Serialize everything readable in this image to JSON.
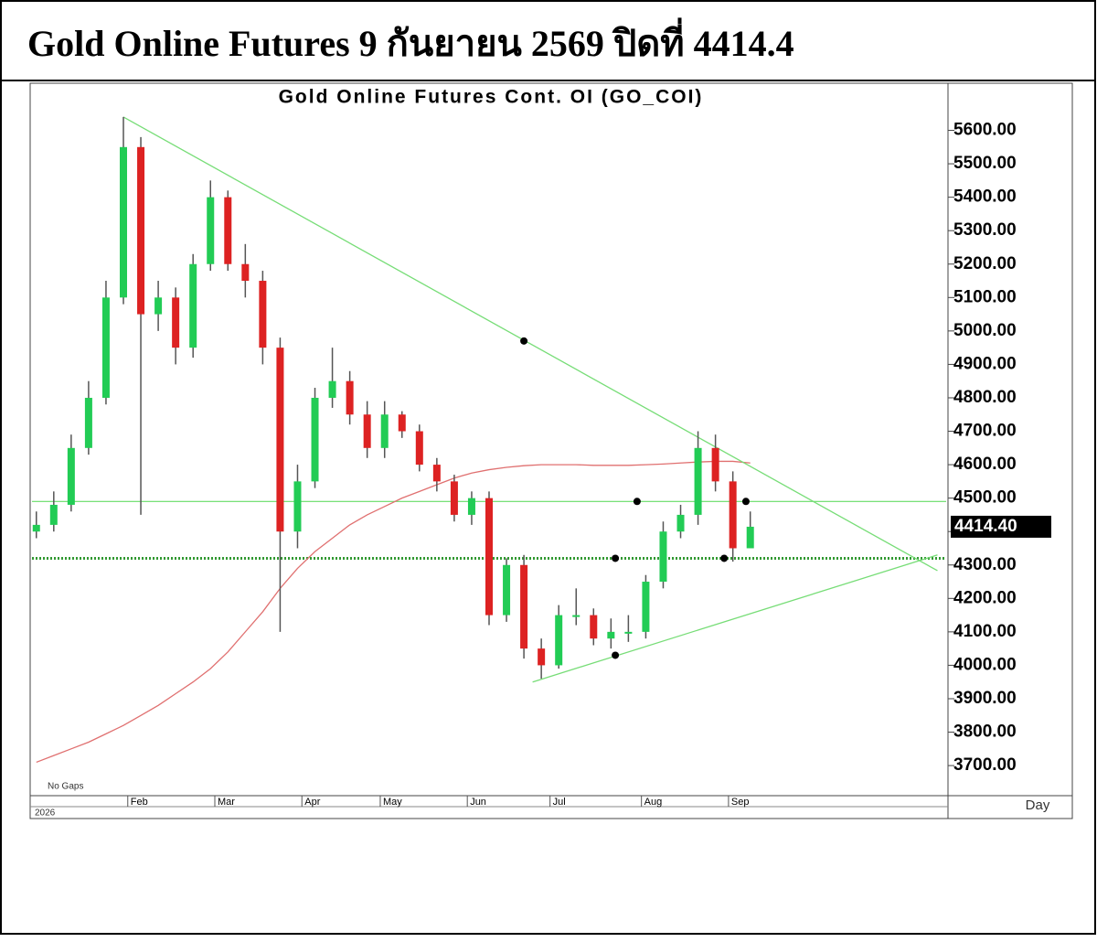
{
  "header": {
    "title": "Gold Online Futures 9 กันยายน 2569 ปิดที่ 4414.4"
  },
  "chart_data": {
    "type": "candlestick",
    "title": "Gold Online Futures Cont. OI (GO_COI)",
    "year_label": "2026",
    "note": "No Gaps",
    "period": "Day",
    "x": [
      0,
      4,
      8,
      12,
      16,
      20,
      24,
      28,
      32,
      36,
      40,
      44,
      48,
      52,
      56,
      60,
      64,
      68,
      72,
      76,
      80,
      84,
      88,
      92,
      96,
      100,
      104,
      108,
      112,
      116,
      120,
      124,
      128,
      132,
      136,
      140,
      144,
      148,
      152,
      156,
      160,
      164
    ],
    "open": [
      4400,
      4420,
      4480,
      4650,
      4800,
      5100,
      5550,
      5050,
      5100,
      4950,
      5200,
      5400,
      5200,
      5150,
      4950,
      4400,
      4550,
      4800,
      4850,
      4750,
      4650,
      4750,
      4700,
      4600,
      4550,
      4450,
      4500,
      4150,
      4300,
      4050,
      4000,
      4150,
      4150,
      4080,
      4100,
      4100,
      4250,
      4400,
      4450,
      4650,
      4550,
      4350
    ],
    "high": [
      4460,
      4520,
      4690,
      4850,
      5150,
      5640,
      5580,
      5150,
      5130,
      5230,
      5450,
      5420,
      5260,
      5180,
      4980,
      4600,
      4830,
      4950,
      4880,
      4790,
      4790,
      4760,
      4720,
      4620,
      4570,
      4520,
      4520,
      4320,
      4330,
      4080,
      4180,
      4230,
      4170,
      4140,
      4150,
      4270,
      4430,
      4480,
      4700,
      4690,
      4580,
      4460
    ],
    "low": [
      4380,
      4400,
      4460,
      4630,
      4780,
      5080,
      4450,
      5000,
      4900,
      4920,
      5180,
      5180,
      5100,
      4900,
      4100,
      4350,
      4530,
      4770,
      4720,
      4620,
      4620,
      4680,
      4580,
      4520,
      4430,
      4420,
      4120,
      4130,
      4020,
      3960,
      3990,
      4120,
      4060,
      4050,
      4070,
      4080,
      4230,
      4380,
      4420,
      4520,
      4310,
      4370
    ],
    "close": [
      4420,
      4480,
      4650,
      4800,
      5100,
      5550,
      5050,
      5100,
      4950,
      5200,
      5400,
      5200,
      5150,
      4950,
      4400,
      4550,
      4800,
      4850,
      4750,
      4650,
      4750,
      4700,
      4600,
      4550,
      4450,
      4500,
      4150,
      4300,
      4050,
      4000,
      4150,
      4150,
      4080,
      4100,
      4100,
      4250,
      4400,
      4450,
      4650,
      4550,
      4350,
      4414.4
    ],
    "up_color": "#22cc55",
    "down_color": "#dd2222",
    "series": [
      {
        "color": "#e07070",
        "values": [
          3710,
          3730,
          3750,
          3770,
          3795,
          3820,
          3850,
          3880,
          3915,
          3950,
          3990,
          4040,
          4100,
          4160,
          4230,
          4290,
          4340,
          4380,
          4420,
          4450,
          4475,
          4500,
          4520,
          4540,
          4560,
          4575,
          4585,
          4592,
          4597,
          4600,
          4600,
          4600,
          4598,
          4598,
          4598,
          4600,
          4602,
          4605,
          4608,
          4610,
          4610,
          4605
        ]
      }
    ],
    "trendlines": [
      {
        "x": [
          20,
          207
        ],
        "y": [
          5640,
          4283
        ],
        "color": "#77dd77"
      },
      {
        "x": [
          114,
          207
        ],
        "y": [
          3950,
          4330
        ],
        "color": "#77dd77"
      }
    ],
    "hlines": [
      {
        "value": 4490,
        "color": "#66dd66",
        "style": "solid"
      },
      {
        "value": 4320,
        "color": "#339933",
        "style": "dotted"
      }
    ],
    "markers": {
      "x": [
        112,
        138,
        133,
        133,
        158,
        163
      ],
      "y": [
        4970,
        4490,
        4320,
        4030,
        4320,
        4490
      ]
    },
    "last_price": {
      "value": 4414.4,
      "label": "4414.40"
    },
    "xlim": [
      -1,
      209
    ],
    "ylim": [
      3610,
      5730
    ],
    "xticks": [
      {
        "value": 21,
        "label": "Feb"
      },
      {
        "value": 41,
        "label": "Mar"
      },
      {
        "value": 61,
        "label": "Apr"
      },
      {
        "value": 79,
        "label": "May"
      },
      {
        "value": 99,
        "label": "Jun"
      },
      {
        "value": 118,
        "label": "Jul"
      },
      {
        "value": 139,
        "label": "Aug"
      },
      {
        "value": 159,
        "label": "Sep"
      }
    ],
    "yticks": [
      {
        "value": 3700,
        "label": "3700.00"
      },
      {
        "value": 3800,
        "label": "3800.00"
      },
      {
        "value": 3900,
        "label": "3900.00"
      },
      {
        "value": 4000,
        "label": "4000.00"
      },
      {
        "value": 4100,
        "label": "4100.00"
      },
      {
        "value": 4200,
        "label": "4200.00"
      },
      {
        "value": 4300,
        "label": "4300.00"
      },
      {
        "value": 4400,
        "label": "4400.00"
      },
      {
        "value": 4500,
        "label": "4500.00"
      },
      {
        "value": 4600,
        "label": "4600.00"
      },
      {
        "value": 4700,
        "label": "4700.00"
      },
      {
        "value": 4800,
        "label": "4800.00"
      },
      {
        "value": 4900,
        "label": "4900.00"
      },
      {
        "value": 5000,
        "label": "5000.00"
      },
      {
        "value": 5100,
        "label": "5100.00"
      },
      {
        "value": 5200,
        "label": "5200.00"
      },
      {
        "value": 5300,
        "label": "5300.00"
      },
      {
        "value": 5400,
        "label": "5400.00"
      },
      {
        "value": 5500,
        "label": "5500.00"
      },
      {
        "value": 5600,
        "label": "5600.00"
      }
    ]
  }
}
